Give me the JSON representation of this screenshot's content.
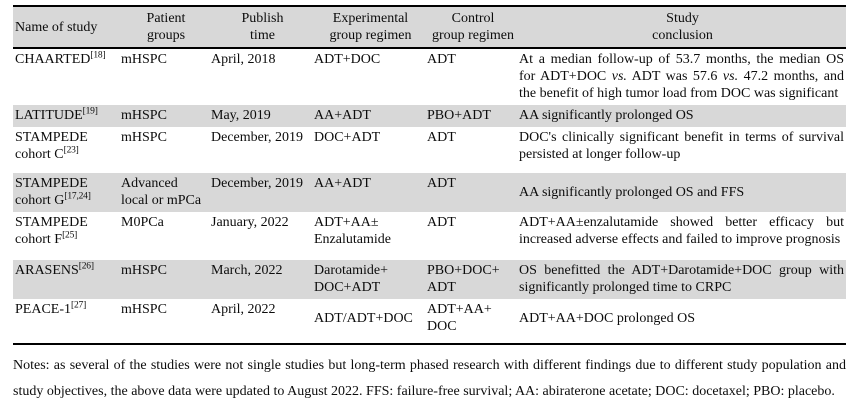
{
  "table": {
    "columns": [
      {
        "label": "Name of study"
      },
      {
        "label": "Patient\ngroups"
      },
      {
        "label": "Publish\ntime"
      },
      {
        "label": "Experimental\ngroup regimen"
      },
      {
        "label": "Control\ngroup regimen"
      },
      {
        "label": "Study\nconclusion"
      }
    ],
    "rows": [
      {
        "name": "CHAARTED",
        "ref": "[18]",
        "patient": "mHSPC",
        "publish": "April, 2018",
        "experimental": "ADT+DOC",
        "control": "ADT",
        "conclusion": "At a median follow-up of 53.7 months, the median OS for ADT+DOC vs. ADT was 57.6 vs. 47.2 months, and the benefit of high tumor load from DOC was significant",
        "shaded": false
      },
      {
        "name": "LATITUDE",
        "ref": "[19]",
        "patient": "mHSPC",
        "publish": "May, 2019",
        "experimental": "AA+ADT",
        "control": "PBO+ADT",
        "conclusion": "AA significantly prolonged OS",
        "shaded": true
      },
      {
        "name": "STAMPEDE\ncohort C",
        "ref": "[23]",
        "patient": "mHSPC",
        "publish": "December, 2019",
        "experimental": "DOC+ADT",
        "control": "ADT",
        "conclusion": "DOC's clinically significant benefit in terms of survival persisted at longer follow-up",
        "shaded": false
      },
      {
        "name": "STAMPEDE\ncohort G",
        "ref": "[17,24]",
        "patient": "Advanced local or mPCa",
        "publish": "December, 2019",
        "experimental": "AA+ADT",
        "control": "ADT",
        "conclusion": "AA significantly prolonged OS and FFS",
        "shaded": true
      },
      {
        "name": "STAMPEDE\ncohort F",
        "ref": "[25]",
        "patient": "M0PCa",
        "publish": "January, 2022",
        "experimental": "ADT+AA±\nEnzalutamide",
        "control": "ADT",
        "conclusion": "ADT+AA±enzalutamide showed better efficacy but increased adverse effects and failed to improve prognosis",
        "shaded": false
      },
      {
        "name": "ARASENS",
        "ref": "[26]",
        "patient": "mHSPC",
        "publish": "March, 2022",
        "experimental": "Darotamide+\nDOC+ADT",
        "control": "PBO+DOC+\nADT",
        "conclusion": "OS benefitted the ADT+Darotamide+DOC group with significantly prolonged time to CRPC",
        "shaded": true
      },
      {
        "name": "PEACE-1",
        "ref": "[27]",
        "patient": "mHSPC",
        "publish": "April, 2022",
        "experimental": "ADT/ADT+DOC",
        "control": "ADT+AA+\nDOC",
        "conclusion": "ADT+AA+DOC prolonged OS",
        "shaded": false
      }
    ]
  },
  "notes": "Notes: as several of the studies were not single studies but long-term phased research with different findings due to different study population and study objectives, the above data were updated to August 2022. FFS: failure-free survival; AA: abiraterone acetate; DOC: docetaxel; PBO: placebo.",
  "colors": {
    "band": "#d8d8d8",
    "border": "#000000",
    "text": "#0c0c0c"
  }
}
